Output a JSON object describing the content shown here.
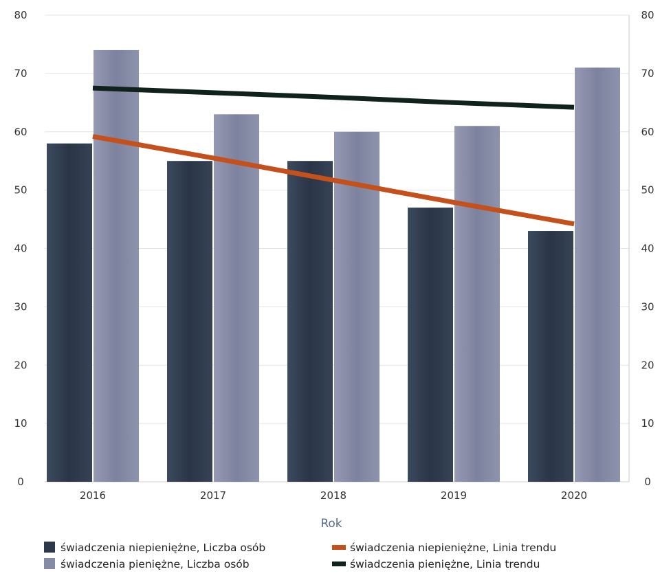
{
  "chart_data": {
    "type": "bar",
    "categories": [
      "2016",
      "2017",
      "2018",
      "2019",
      "2020"
    ],
    "series": [
      {
        "name": "świadczenia niepieniężne, Liczba osób",
        "kind": "bar",
        "color": "#2e3a4c",
        "values": [
          58,
          55,
          55,
          47,
          43
        ]
      },
      {
        "name": "świadczenia pieniężne, Liczba osób",
        "kind": "bar",
        "color": "#868ba6",
        "values": [
          74,
          63,
          60,
          61,
          71
        ]
      },
      {
        "name": "świadczenia niepieniężne, Linia trendu",
        "kind": "line",
        "color": "#c4501c",
        "values": [
          59.2,
          55.5,
          51.7,
          47.9,
          44.2
        ]
      },
      {
        "name": "świadczenia pieniężne, Linia trendu",
        "kind": "line",
        "color": "#10221c",
        "values": [
          67.5,
          66.7,
          65.9,
          65.0,
          64.2
        ]
      }
    ],
    "xlabel": "Rok",
    "ylim": [
      0,
      80
    ],
    "yticks": [
      0,
      10,
      20,
      30,
      40,
      50,
      60,
      70,
      80
    ],
    "y2lim": [
      0,
      80
    ],
    "y2ticks": [
      0,
      10,
      20,
      30,
      40,
      50,
      60,
      70,
      80
    ],
    "grid": true,
    "legend_position": "bottom"
  }
}
